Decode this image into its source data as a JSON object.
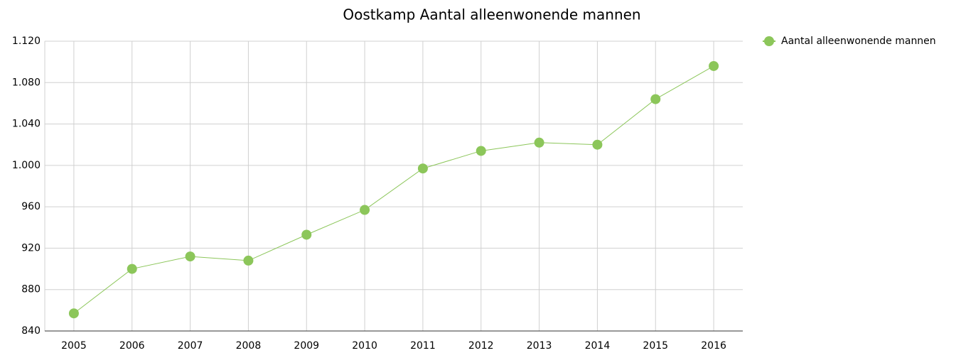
{
  "chart_data": {
    "type": "line",
    "title": "Oostkamp  Aantal alleenwonende mannen",
    "categories": [
      "2005",
      "2006",
      "2007",
      "2008",
      "2009",
      "2010",
      "2011",
      "2012",
      "2013",
      "2014",
      "2015",
      "2016"
    ],
    "series": [
      {
        "name": "Aantal alleenwonende mannen",
        "color": "#8cc65a",
        "values": [
          857,
          900,
          912,
          908,
          933,
          957,
          997,
          1014,
          1022,
          1020,
          1064,
          1096
        ]
      }
    ],
    "ylim": [
      840,
      1120
    ],
    "yticks": [
      840,
      880,
      920,
      960,
      {
        "value": 1000,
        "label": "1.000"
      },
      {
        "value": 1040,
        "label": "1.040"
      },
      {
        "value": 1080,
        "label": "1.080"
      },
      {
        "value": 1120,
        "label": "1.120"
      }
    ],
    "grid": true,
    "legend": "top-right"
  }
}
